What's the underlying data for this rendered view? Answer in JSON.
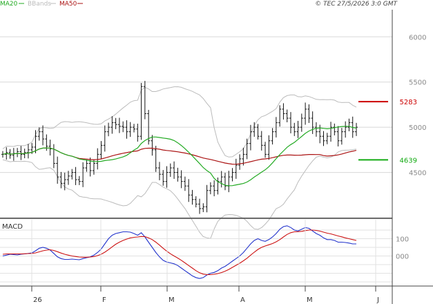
{
  "header": {
    "copyright": "© TEC 27/5/2026 3:0 GMT",
    "legend": [
      {
        "label": "MA20",
        "color": "#22aa22"
      },
      {
        "label": "BBands",
        "color": "#bbbbbb"
      },
      {
        "label": "MA50",
        "color": "#aa1111"
      }
    ]
  },
  "chart_data": [
    {
      "type": "ohlc",
      "panel": "price",
      "y_ticks": [
        "6000",
        "5500",
        "5000",
        "4500"
      ],
      "ylim": [
        4000,
        6300
      ],
      "grid": true,
      "reference_levels": [
        {
          "label": "5283",
          "value": 5283,
          "color": "#cc0000"
        },
        {
          "label": "4639",
          "value": 4639,
          "color": "#11aa11"
        }
      ],
      "x_ticks": [
        "26",
        "F",
        "M",
        "A",
        "M",
        "J"
      ],
      "close": [
        4700,
        4720,
        4690,
        4710,
        4730,
        4700,
        4720,
        4750,
        4780,
        4900,
        4950,
        4870,
        4790,
        4760,
        4600,
        4450,
        4380,
        4420,
        4460,
        4500,
        4420,
        4400,
        4550,
        4600,
        4520,
        4600,
        4700,
        4800,
        4950,
        5000,
        5050,
        5030,
        5010,
        5000,
        4950,
        5000,
        4980,
        4900,
        5450,
        5150,
        4850,
        4750,
        4550,
        4480,
        4400,
        4500,
        4550,
        4500,
        4450,
        4400,
        4350,
        4250,
        4200,
        4150,
        4100,
        4120,
        4300,
        4350,
        4300,
        4400,
        4450,
        4350,
        4450,
        4500,
        4580,
        4650,
        4700,
        4820,
        4950,
        5000,
        4900,
        4800,
        4700,
        4850,
        4950,
        5050,
        5200,
        5150,
        5100,
        5000,
        4950,
        5000,
        5100,
        5200,
        5100,
        5000,
        4950,
        4900,
        4850,
        4900,
        5000,
        4950,
        4850,
        4950,
        5000,
        5050,
        4950,
        5000
      ]
    },
    {
      "type": "line",
      "panel": "macd",
      "title": "MACD",
      "y_ticks": [
        "100",
        "000"
      ],
      "ylim": [
        -170,
        210
      ],
      "series": [
        {
          "color": "#2233cc",
          "values": [
            0,
            5,
            10,
            8,
            6,
            10,
            12,
            15,
            18,
            30,
            45,
            50,
            45,
            35,
            15,
            -5,
            -15,
            -20,
            -20,
            -18,
            -20,
            -22,
            -15,
            -10,
            -5,
            5,
            20,
            40,
            70,
            100,
            120,
            130,
            135,
            140,
            140,
            138,
            130,
            120,
            135,
            110,
            80,
            50,
            20,
            -5,
            -25,
            -35,
            -40,
            -45,
            -55,
            -70,
            -85,
            -100,
            -115,
            -125,
            -130,
            -125,
            -110,
            -100,
            -95,
            -85,
            -70,
            -60,
            -45,
            -30,
            -15,
            0,
            20,
            45,
            70,
            90,
            100,
            90,
            85,
            95,
            110,
            130,
            155,
            170,
            175,
            165,
            150,
            145,
            155,
            165,
            160,
            145,
            130,
            120,
            105,
            95,
            95,
            90,
            80,
            80,
            78,
            75,
            70,
            70
          ]
        },
        {
          "color": "#cc1111",
          "values": [
            10,
            12,
            12,
            12,
            12,
            12,
            13,
            14,
            15,
            18,
            24,
            30,
            34,
            36,
            32,
            25,
            17,
            10,
            5,
            0,
            -3,
            -6,
            -7,
            -7,
            -6,
            -3,
            2,
            10,
            22,
            37,
            53,
            68,
            80,
            90,
            98,
            105,
            108,
            110,
            113,
            112,
            105,
            95,
            80,
            63,
            45,
            28,
            13,
            0,
            -12,
            -25,
            -40,
            -55,
            -70,
            -85,
            -97,
            -105,
            -108,
            -108,
            -106,
            -102,
            -96,
            -88,
            -78,
            -66,
            -54,
            -42,
            -28,
            -13,
            5,
            22,
            38,
            50,
            58,
            65,
            72,
            82,
            95,
            110,
            125,
            135,
            140,
            141,
            143,
            147,
            150,
            150,
            148,
            144,
            138,
            132,
            128,
            122,
            116,
            111,
            105,
            100,
            95,
            90
          ]
        }
      ]
    }
  ]
}
